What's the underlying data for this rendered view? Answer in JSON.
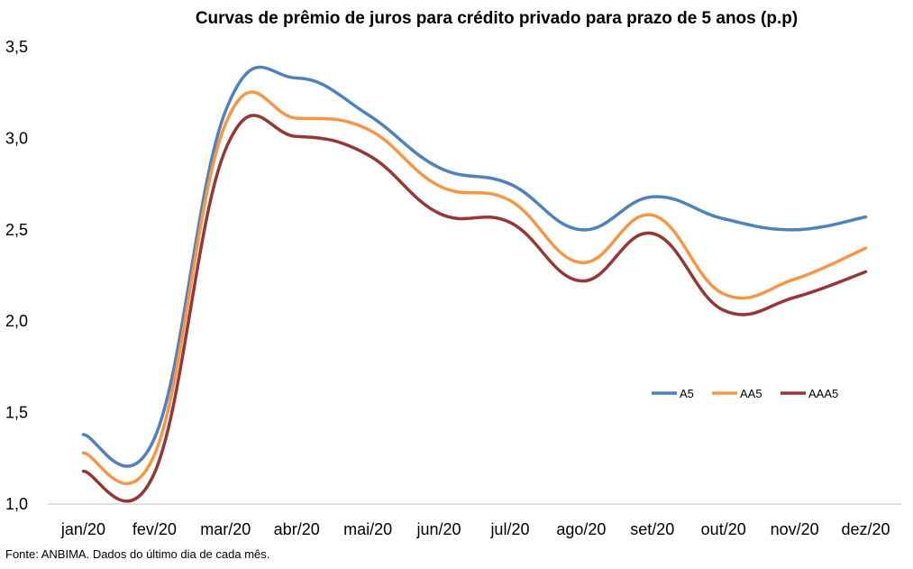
{
  "chart_data": {
    "type": "line",
    "title": "Curvas de prêmio de juros para crédito privado para prazo de 5 anos (p.p)",
    "xlabel": "",
    "ylabel": "",
    "categories": [
      "jan/20",
      "fev/20",
      "mar/20",
      "abr/20",
      "mai/20",
      "jun/20",
      "jul/20",
      "ago/20",
      "set/20",
      "out/20",
      "nov/20",
      "dez/20"
    ],
    "ylim": [
      1.0,
      3.5
    ],
    "yticks": [
      "1,0",
      "1,5",
      "2,0",
      "2,5",
      "3,0",
      "3,5"
    ],
    "grid": false,
    "legend_position": "right",
    "series": [
      {
        "name": "A5",
        "color": "#4f81bd",
        "values": [
          1.38,
          1.36,
          3.15,
          3.33,
          3.13,
          2.84,
          2.75,
          2.5,
          2.68,
          2.56,
          2.5,
          2.57
        ]
      },
      {
        "name": "AA5",
        "color": "#f79646",
        "values": [
          1.28,
          1.27,
          3.08,
          3.11,
          3.05,
          2.74,
          2.66,
          2.32,
          2.58,
          2.15,
          2.23,
          2.4
        ]
      },
      {
        "name": "AAA5",
        "color": "#953735",
        "values": [
          1.18,
          1.17,
          2.94,
          3.01,
          2.91,
          2.59,
          2.54,
          2.22,
          2.48,
          2.06,
          2.13,
          2.27
        ]
      }
    ]
  },
  "source_note": "Fonte: ANBIMA. Dados do último dia de cada mês."
}
